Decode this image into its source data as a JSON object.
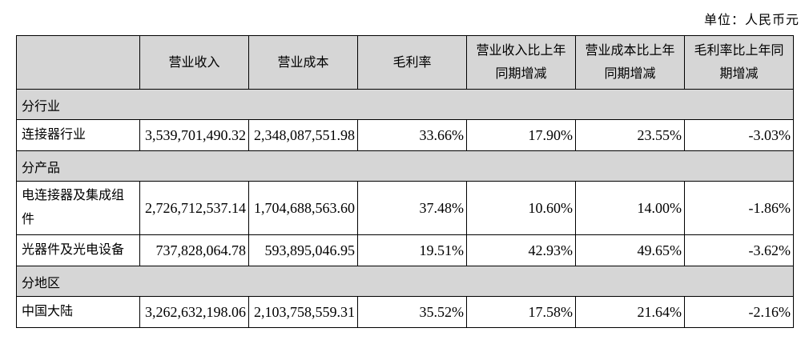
{
  "meta": {
    "unit_label": "单位：人民币元"
  },
  "table": {
    "columns": [
      "",
      "营业收入",
      "营业成本",
      "毛利率",
      "营业收入比上年同期增减",
      "营业成本比上年同期增减",
      "毛利率比上年同期增减"
    ],
    "rows": [
      {
        "type": "section",
        "label": "分行业"
      },
      {
        "type": "data",
        "label": "连接器行业",
        "values": [
          "3,539,701,490.32",
          "2,348,087,551.98",
          "33.66%",
          "17.90%",
          "23.55%",
          "-3.03%"
        ]
      },
      {
        "type": "section",
        "label": "分产品"
      },
      {
        "type": "data",
        "label": "电连接器及集成组件",
        "values": [
          "2,726,712,537.14",
          "1,704,688,563.60",
          "37.48%",
          "10.60%",
          "14.00%",
          "-1.86%"
        ]
      },
      {
        "type": "data",
        "label": "光器件及光电设备",
        "values": [
          "737,828,064.78",
          "593,895,046.95",
          "19.51%",
          "42.93%",
          "49.65%",
          "-3.62%"
        ]
      },
      {
        "type": "section",
        "label": "分地区"
      },
      {
        "type": "data",
        "label": "中国大陆",
        "values": [
          "3,262,632,198.06",
          "2,103,758,559.31",
          "35.52%",
          "17.58%",
          "21.64%",
          "-2.16%"
        ]
      }
    ],
    "colors": {
      "header_bg": "#d6d6d6",
      "section_bg": "#d6d6d6",
      "border": "#000000",
      "text": "#000000"
    }
  }
}
